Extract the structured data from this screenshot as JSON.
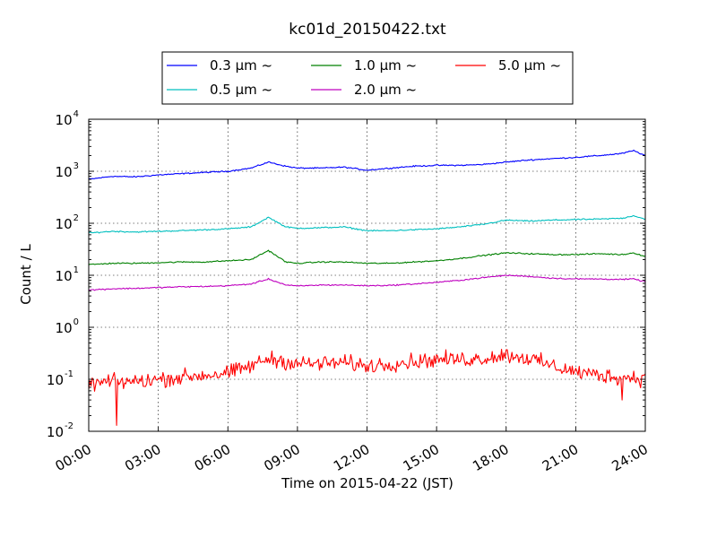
{
  "chart_data": {
    "type": "line",
    "title": "kc01d_20150422.txt",
    "xlabel": "Time on 2015-04-22 (JST)",
    "ylabel": "Count / L",
    "y_scale": "log",
    "xlim": [
      "00:00",
      "24:00"
    ],
    "ylim": [
      0.01,
      10000
    ],
    "grid": true,
    "legend_placement": "above plot, centered (3 columns)",
    "x_ticks": [
      "00:00",
      "03:00",
      "06:00",
      "09:00",
      "12:00",
      "15:00",
      "18:00",
      "21:00",
      "24:00"
    ],
    "y_ticks": [
      {
        "base": "10",
        "exp": "-2",
        "value": 0.01
      },
      {
        "base": "10",
        "exp": "-1",
        "value": 0.1
      },
      {
        "base": "10",
        "exp": "0",
        "value": 1
      },
      {
        "base": "10",
        "exp": "1",
        "value": 10
      },
      {
        "base": "10",
        "exp": "2",
        "value": 100
      },
      {
        "base": "10",
        "exp": "3",
        "value": 1000
      },
      {
        "base": "10",
        "exp": "4",
        "value": 10000
      }
    ],
    "x": [
      "00:00",
      "01:00",
      "02:00",
      "03:00",
      "04:00",
      "05:00",
      "06:00",
      "07:00",
      "07:45",
      "08:30",
      "09:00",
      "10:00",
      "11:00",
      "12:00",
      "13:00",
      "14:00",
      "15:00",
      "16:00",
      "17:00",
      "18:00",
      "19:00",
      "20:00",
      "21:00",
      "22:00",
      "23:00",
      "23:30",
      "24:00"
    ],
    "series": [
      {
        "name": "0.3 μm ~",
        "color": "#0000ff",
        "values": [
          700,
          800,
          780,
          850,
          900,
          950,
          1000,
          1150,
          1500,
          1250,
          1150,
          1150,
          1200,
          1050,
          1150,
          1250,
          1300,
          1300,
          1350,
          1500,
          1650,
          1750,
          1850,
          2000,
          2200,
          2500,
          2000
        ]
      },
      {
        "name": "0.5 μm ~",
        "color": "#00bfbf",
        "values": [
          65,
          70,
          68,
          70,
          72,
          75,
          78,
          85,
          130,
          85,
          80,
          82,
          85,
          72,
          72,
          75,
          78,
          85,
          95,
          115,
          110,
          115,
          118,
          120,
          125,
          140,
          120
        ]
      },
      {
        "name": "1.0 μm ~",
        "color": "#008000",
        "values": [
          16,
          17,
          17,
          17.5,
          18,
          18,
          19,
          20,
          30,
          18,
          17,
          18,
          18,
          17,
          17,
          18,
          19,
          21,
          24,
          27,
          26,
          25,
          25,
          26,
          25,
          27,
          23
        ]
      },
      {
        "name": "2.0 μm ~",
        "color": "#bf00bf",
        "values": [
          5.2,
          5.5,
          5.6,
          5.8,
          6.0,
          6.1,
          6.3,
          6.8,
          8.5,
          6.5,
          6.2,
          6.5,
          6.5,
          6.3,
          6.4,
          6.8,
          7.3,
          8.0,
          9.0,
          10,
          9.5,
          8.8,
          8.5,
          8.5,
          8.3,
          8.5,
          7.5
        ]
      },
      {
        "name": "5.0 μm ~",
        "color": "#ff0000",
        "values": [
          0.08,
          0.09,
          0.09,
          0.1,
          0.11,
          0.12,
          0.13,
          0.18,
          0.25,
          0.22,
          0.2,
          0.2,
          0.21,
          0.18,
          0.2,
          0.22,
          0.24,
          0.24,
          0.25,
          0.3,
          0.25,
          0.18,
          0.14,
          0.12,
          0.11,
          0.11,
          0.1
        ],
        "min_points": [
          {
            "x": "01:12",
            "y": 0.013
          },
          {
            "x": "23:00",
            "y": 0.04
          }
        ]
      }
    ]
  }
}
